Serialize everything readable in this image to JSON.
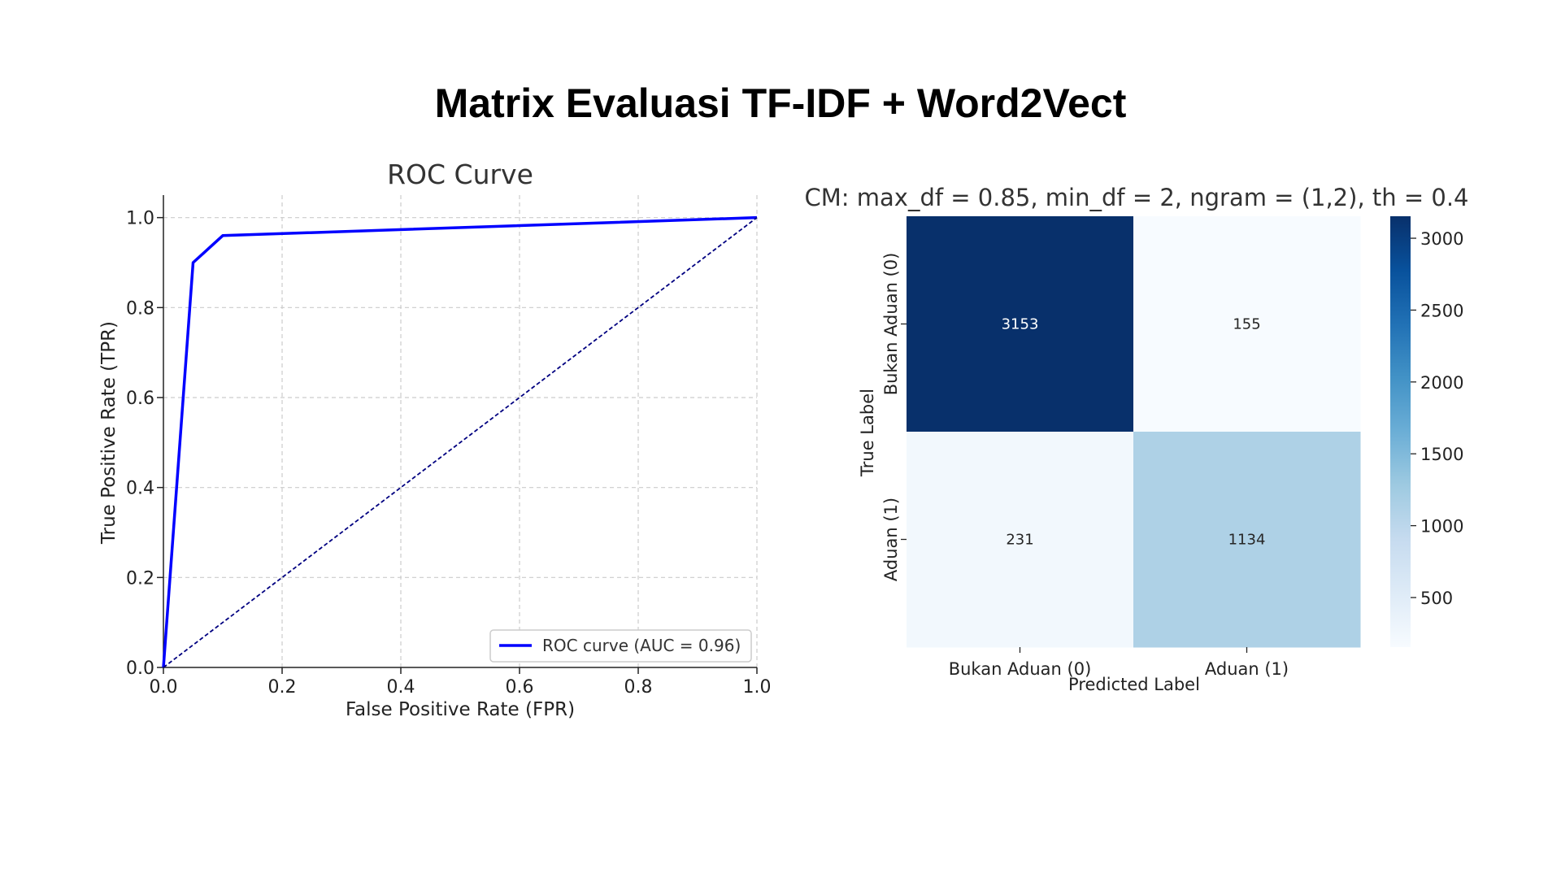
{
  "page": {
    "title": "Matrix Evaluasi TF-IDF + Word2Vect"
  },
  "chart_data": [
    {
      "type": "line",
      "title": "ROC Curve",
      "xlabel": "False Positive Rate (FPR)",
      "ylabel": "True Positive Rate (TPR)",
      "xlim": [
        0.0,
        1.0
      ],
      "ylim": [
        0.0,
        1.05
      ],
      "xticks": [
        0.0,
        0.2,
        0.4,
        0.6,
        0.8,
        1.0
      ],
      "yticks": [
        0.0,
        0.2,
        0.4,
        0.6,
        0.8,
        1.0
      ],
      "xtick_labels": [
        "0.0",
        "0.2",
        "0.4",
        "0.6",
        "0.8",
        "1.0"
      ],
      "ytick_labels": [
        "0.0",
        "0.2",
        "0.4",
        "0.6",
        "0.8",
        "1.0"
      ],
      "grid": true,
      "legend_position": "lower-right",
      "series": [
        {
          "name": "ROC curve (AUC = 0.96)",
          "color": "#0000ff",
          "style": "solid",
          "x": [
            0.0,
            0.05,
            0.1,
            1.0
          ],
          "y": [
            0.0,
            0.9,
            0.96,
            1.0
          ]
        },
        {
          "color": "#000080",
          "style": "dashed",
          "x": [
            0.0,
            1.0
          ],
          "y": [
            0.0,
            1.0
          ]
        }
      ]
    },
    {
      "type": "heatmap",
      "title": "CM: max_df = 0.85, min_df = 2, ngram = (1,2), th = 0.4",
      "xlabel": "Predicted Label",
      "ylabel": "True Label",
      "x_categories": [
        "Bukan Aduan (0)",
        "Aduan (1)"
      ],
      "y_categories": [
        "Bukan Aduan (0)",
        "Aduan (1)"
      ],
      "values": [
        [
          3153,
          155
        ],
        [
          231,
          1134
        ]
      ],
      "value_labels": [
        [
          "3153",
          "155"
        ],
        [
          "231",
          "1134"
        ]
      ],
      "colormap": "Blues",
      "colorbar": {
        "range": [
          155,
          3153
        ],
        "ticks": [
          500,
          1000,
          1500,
          2000,
          2500,
          3000
        ],
        "tick_labels": [
          "500",
          "1000",
          "1500",
          "2000",
          "2500",
          "3000"
        ]
      }
    }
  ]
}
